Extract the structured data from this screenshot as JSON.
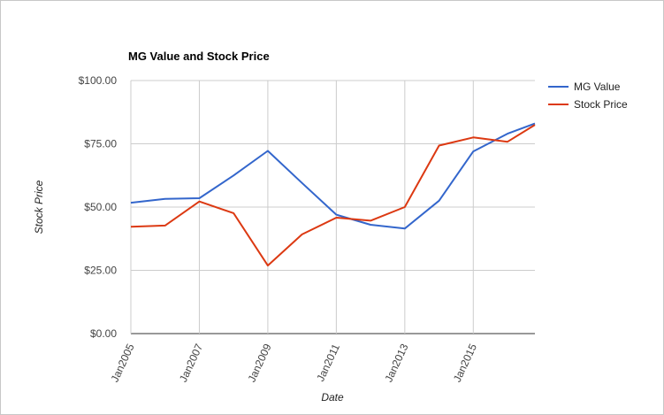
{
  "chart_data": {
    "type": "line",
    "title": "MG Value and Stock Price",
    "xlabel": "Date",
    "ylabel": "Stock Price",
    "x": [
      2005,
      2006,
      2007,
      2008,
      2009,
      2010,
      2011,
      2012,
      2013,
      2014,
      2015,
      2016,
      2016.8
    ],
    "xlim": [
      2005,
      2016.8
    ],
    "x_ticks": [
      2005,
      2007,
      2009,
      2011,
      2013,
      2015
    ],
    "x_tick_labels": [
      "Jan2005",
      "Jan2007",
      "Jan2009",
      "Jan2011",
      "Jan2013",
      "Jan2015"
    ],
    "ylim": [
      0,
      100
    ],
    "y_ticks": [
      0,
      25,
      50,
      75,
      100
    ],
    "y_tick_labels": [
      "$0.00",
      "$25.00",
      "$50.00",
      "$75.00",
      "$100.00"
    ],
    "grid": true,
    "legend_position": "right",
    "series": [
      {
        "name": "MG Value",
        "color": "#3366cc",
        "values": [
          51.7,
          53.2,
          53.5,
          62.5,
          72.2,
          59.5,
          47.0,
          43.0,
          41.5,
          52.5,
          72.0,
          79.0,
          83.0
        ]
      },
      {
        "name": "Stock Price",
        "color": "#dc3912",
        "values": [
          42.2,
          42.7,
          52.2,
          47.6,
          26.9,
          39.2,
          45.8,
          44.6,
          50.0,
          74.3,
          77.5,
          75.8,
          82.5
        ]
      }
    ]
  }
}
